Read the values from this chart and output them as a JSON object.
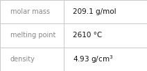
{
  "rows": [
    {
      "label": "molar mass",
      "value": "209.1 g/mol"
    },
    {
      "label": "melting point",
      "value": "2610 °C"
    },
    {
      "label": "density",
      "value": "4.93 g/cm³"
    }
  ],
  "bg_color": "#ffffff",
  "border_color": "#c8c8c8",
  "label_color": "#888888",
  "value_color": "#111111",
  "label_fontsize": 7.0,
  "value_fontsize": 7.5,
  "col_split": 0.435,
  "fig_width": 2.12,
  "fig_height": 1.03,
  "dpi": 100
}
